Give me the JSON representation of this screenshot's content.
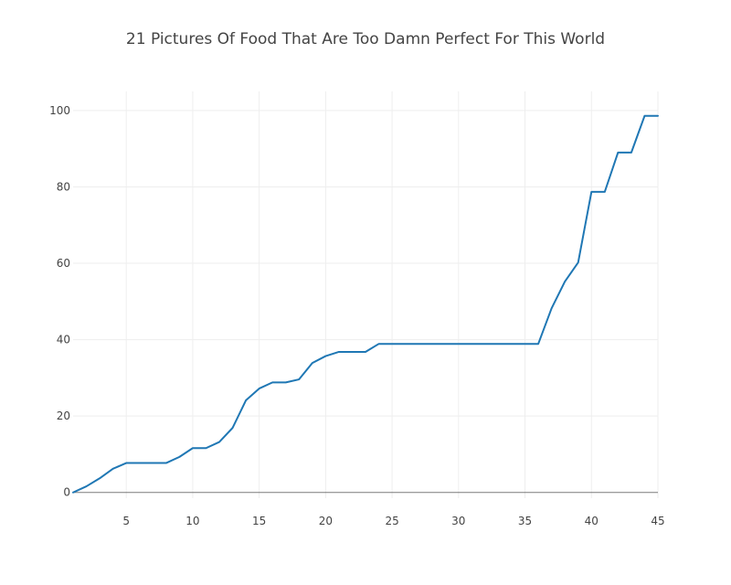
{
  "colors": {
    "line": "#1f77b4",
    "grid": "#eeeeee",
    "zeroline": "#444444",
    "text": "#444444"
  },
  "chart_data": {
    "type": "line",
    "title": "21 Pictures Of Food That Are Too Damn Perfect For This World",
    "xlabel": "",
    "ylabel": "",
    "xlim": [
      1,
      45
    ],
    "ylim": [
      -1.5,
      105
    ],
    "grid": true,
    "legend": "none",
    "x_ticks": [
      5,
      10,
      15,
      20,
      25,
      30,
      35,
      40,
      45
    ],
    "y_ticks": [
      0,
      20,
      40,
      60,
      80,
      100
    ],
    "series": [
      {
        "x": [
          1,
          2,
          3,
          4,
          5,
          6,
          7,
          8,
          9,
          10,
          11,
          12,
          13,
          14,
          15,
          16,
          17,
          18,
          19,
          20,
          21,
          22,
          23,
          24,
          25,
          26,
          27,
          28,
          29,
          30,
          31,
          32,
          33,
          34,
          35,
          36,
          37,
          38,
          39,
          40,
          41,
          42,
          43,
          44,
          45
        ],
        "values": [
          0,
          1.6,
          3.7,
          6.2,
          7.7,
          7.7,
          7.7,
          7.7,
          9.3,
          11.6,
          11.6,
          13.2,
          16.9,
          24.1,
          27.2,
          28.8,
          28.8,
          29.6,
          33.9,
          35.7,
          36.8,
          36.8,
          36.8,
          38.9,
          38.9,
          38.9,
          38.9,
          38.9,
          38.9,
          38.9,
          38.9,
          38.9,
          38.9,
          38.9,
          38.9,
          38.9,
          48.2,
          55.2,
          60.2,
          78.7,
          78.7,
          89.0,
          89.0,
          98.6,
          98.6
        ]
      }
    ]
  }
}
